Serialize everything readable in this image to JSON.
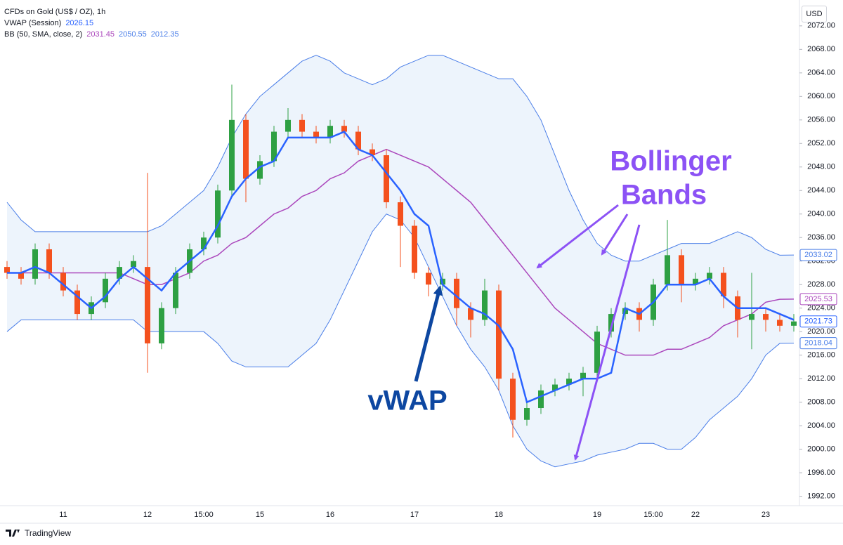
{
  "chart_data": {
    "type": "candlestick",
    "title": "CFDs on Gold (US$ / OZ), 1h",
    "currency": "USD",
    "brand": "TradingView",
    "categories": [
      null,
      null,
      null,
      null,
      "11",
      null,
      null,
      null,
      null,
      null,
      "12",
      null,
      null,
      null,
      "15:00",
      null,
      null,
      null,
      "15",
      null,
      null,
      null,
      null,
      "16",
      null,
      null,
      null,
      null,
      null,
      "17",
      null,
      null,
      null,
      null,
      null,
      "18",
      null,
      null,
      null,
      null,
      null,
      null,
      "19",
      null,
      null,
      null,
      "15:00",
      null,
      null,
      "22",
      null,
      null,
      null,
      null,
      "23",
      null,
      null
    ],
    "open": [
      2031,
      2030,
      2029,
      2034,
      2030,
      2027,
      2023,
      2025,
      2029,
      2031,
      2031,
      2018,
      2024,
      2030,
      2034,
      2036,
      2044,
      2056,
      2046,
      2049,
      2054,
      2056,
      2054,
      2053,
      2055,
      2054,
      2051,
      2050,
      2042,
      2038,
      2030,
      2028,
      2029,
      2024,
      2022,
      2027,
      2012,
      2005,
      2007,
      2010,
      2011,
      2012,
      2013,
      2020,
      2023,
      2024,
      2022,
      2028,
      2033,
      2028,
      2029,
      2030,
      2026,
      2022,
      2023,
      2022,
      2021
    ],
    "high": [
      2032,
      2031,
      2035,
      2035,
      2031,
      2028,
      2026,
      2030,
      2032,
      2033,
      2047,
      2025,
      2031,
      2035,
      2037,
      2045,
      2062,
      2057,
      2050,
      2055,
      2058,
      2057,
      2055,
      2056,
      2056,
      2055,
      2052,
      2051,
      2043,
      2039,
      2031,
      2030,
      2030,
      2025,
      2029,
      2028,
      2013,
      2008,
      2011,
      2012,
      2013,
      2014,
      2021,
      2024,
      2025,
      2025,
      2029,
      2039,
      2034,
      2030,
      2031,
      2031,
      2027,
      2030,
      2024,
      2023,
      2023
    ],
    "low": [
      2029,
      2028,
      2028,
      2029,
      2026,
      2022,
      2022,
      2024,
      2028,
      2030,
      2013,
      2017,
      2023,
      2029,
      2033,
      2035,
      2043,
      2042,
      2045,
      2048,
      2053,
      2053,
      2052,
      2052,
      2053,
      2050,
      2049,
      2041,
      2031,
      2029,
      2026,
      2027,
      2021,
      2019,
      2021,
      2010,
      2002,
      2004,
      2006,
      2009,
      2010,
      2009,
      2012,
      2019,
      2022,
      2020,
      2021,
      2027,
      2025,
      2027,
      2028,
      2024,
      2019,
      2017,
      2020,
      2020,
      2020
    ],
    "close": [
      2030,
      2029,
      2034,
      2030,
      2027,
      2023,
      2025,
      2029,
      2031,
      2032,
      2018,
      2024,
      2030,
      2034,
      2036,
      2044,
      2056,
      2046,
      2049,
      2054,
      2056,
      2054,
      2053,
      2055,
      2054,
      2051,
      2050,
      2042,
      2038,
      2030,
      2028,
      2029,
      2024,
      2022,
      2027,
      2012,
      2005,
      2007,
      2010,
      2011,
      2012,
      2013,
      2020,
      2023,
      2024,
      2022,
      2028,
      2033,
      2028,
      2029,
      2030,
      2026,
      2022,
      2023,
      2022,
      2021,
      2021.73
    ],
    "up_color": "#2ea043",
    "down_color": "#f4511e",
    "vwap": {
      "name": "VWAP (Session)",
      "value": 2026.15,
      "color": "#2962ff",
      "values": [
        2030,
        2030,
        2031,
        2030,
        2028,
        2026,
        2024,
        2026,
        2029,
        2031,
        2029,
        2027,
        2030,
        2032,
        2034,
        2038,
        2043,
        2046,
        2048,
        2049,
        2053,
        2053,
        2053,
        2053,
        2054,
        2051,
        2050,
        2047,
        2044,
        2040,
        2038,
        2028,
        2026,
        2024,
        2023,
        2021,
        2017,
        2008,
        2009,
        2010,
        2011,
        2012,
        2012,
        2013,
        2024,
        2023,
        2025,
        2028,
        2028,
        2028,
        2029,
        2026,
        2024,
        2024,
        2024,
        2023,
        2022
      ]
    },
    "bb": {
      "name": "BB (50, SMA, close, 2)",
      "legend_values": [
        2031.45,
        2050.55,
        2012.35
      ],
      "basis_color": "#ab47bc",
      "band_color": "#4a7ee8",
      "fill_color": "#e8f1fb",
      "basis": [
        2030,
        2030,
        2030,
        2030,
        2030,
        2030,
        2030,
        2030,
        2030,
        2029,
        2028,
        2028,
        2029,
        2030,
        2032,
        2033,
        2035,
        2036,
        2038,
        2040,
        2041,
        2043,
        2044,
        2046,
        2047,
        2049,
        2050,
        2051,
        2050,
        2049,
        2048,
        2046,
        2044,
        2042,
        2039,
        2036,
        2033,
        2030,
        2027,
        2024,
        2022,
        2020,
        2018,
        2017,
        2016,
        2016,
        2016,
        2017,
        2017,
        2018,
        2019,
        2021,
        2022,
        2023,
        2025,
        2025.5,
        2025.53
      ],
      "upper": [
        2042,
        2039,
        2037,
        2037,
        2037,
        2037,
        2037,
        2037,
        2037,
        2037,
        2037,
        2038,
        2040,
        2042,
        2044,
        2048,
        2053,
        2057,
        2060,
        2062,
        2064,
        2066,
        2067,
        2066,
        2064,
        2063,
        2062,
        2063,
        2065,
        2066,
        2067,
        2067,
        2066,
        2065,
        2064,
        2063,
        2063,
        2060,
        2056,
        2050,
        2044,
        2039,
        2035,
        2033,
        2032,
        2032,
        2033,
        2034,
        2035,
        2035,
        2035,
        2036,
        2037,
        2036,
        2034,
        2033,
        2033.02
      ],
      "lower": [
        2020,
        2022,
        2022,
        2022,
        2022,
        2022,
        2022,
        2022,
        2022,
        2022,
        2020,
        2020,
        2020,
        2020,
        2020,
        2018,
        2015,
        2014,
        2014,
        2014,
        2014,
        2016,
        2018,
        2022,
        2027,
        2032,
        2037,
        2040,
        2039,
        2036,
        2031,
        2026,
        2021,
        2017,
        2014,
        2010,
        2004,
        2000,
        1998,
        1997,
        1997.5,
        1998,
        1999,
        1999.5,
        2000,
        2001,
        2001,
        2000,
        2000,
        2002,
        2005,
        2007,
        2009,
        2012,
        2016,
        2018,
        2018.04
      ]
    },
    "price_tags": [
      {
        "value": 2033.02,
        "color": "#4a7ee8"
      },
      {
        "value": 2025.53,
        "color": "#ab47bc"
      },
      {
        "value": 2021.73,
        "color": "#2962ff"
      },
      {
        "value": 2018.04,
        "color": "#4a7ee8"
      }
    ],
    "ylim": [
      1990.4,
      2076.4
    ],
    "yticks": [
      {
        "value": 1992,
        "label": "1992.00"
      },
      {
        "value": 1996,
        "label": "1996.00"
      },
      {
        "value": 2000,
        "label": "2000.00"
      },
      {
        "value": 2004,
        "label": "2004.00"
      },
      {
        "value": 2008,
        "label": "2008.00"
      },
      {
        "value": 2012,
        "label": "2012.00"
      },
      {
        "value": 2016,
        "label": "2016.00"
      },
      {
        "value": 2020,
        "label": "2020.00"
      },
      {
        "value": 2024,
        "label": "2024.00"
      },
      {
        "value": 2028,
        "label": "2028.00"
      },
      {
        "value": 2032,
        "label": "2032.00"
      },
      {
        "value": 2036,
        "label": "2036.00"
      },
      {
        "value": 2040,
        "label": "2040.00"
      },
      {
        "value": 2044,
        "label": "2044.00"
      },
      {
        "value": 2048,
        "label": "2048.00"
      },
      {
        "value": 2052,
        "label": "2052.00"
      },
      {
        "value": 2056,
        "label": "2056.00"
      },
      {
        "value": 2060,
        "label": "2060.00"
      },
      {
        "value": 2064,
        "label": "2064.00"
      },
      {
        "value": 2068,
        "label": "2068.00"
      },
      {
        "value": 2072,
        "label": "2072.00"
      }
    ],
    "grid": false,
    "annotations": {
      "bollinger": [
        "Bollinger",
        "Bands"
      ],
      "bollinger_color": "#8c52f5",
      "vwap": "vWAP",
      "vwap_color": "#0d47a1"
    }
  }
}
